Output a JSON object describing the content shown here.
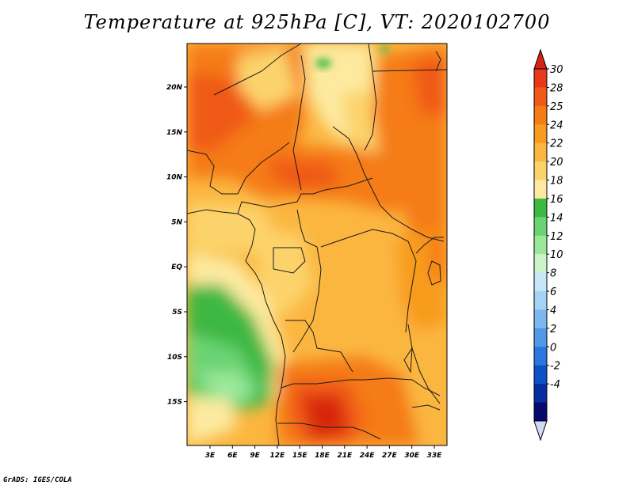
{
  "title": "Temperature at 925hPa [C], VT: 2020102700",
  "credit": "GrADS: IGES/COLA",
  "map": {
    "lon_ticks": [
      "3E",
      "6E",
      "9E",
      "12E",
      "15E",
      "18E",
      "21E",
      "24E",
      "27E",
      "30E",
      "33E"
    ],
    "lat_ticks": [
      "20N",
      "15N",
      "10N",
      "5N",
      "EQ",
      "5S",
      "10S",
      "15S"
    ]
  },
  "colorbar": {
    "labels": [
      "30",
      "28",
      "25",
      "24",
      "22",
      "20",
      "18",
      "16",
      "14",
      "12",
      "10",
      "8",
      "6",
      "4",
      "2",
      "0",
      "-2",
      "-4"
    ],
    "colors": [
      "#e8391f",
      "#f05a18",
      "#f57b14",
      "#f89b1f",
      "#fbb640",
      "#fcd36b",
      "#fdeaa0",
      "#3cb843",
      "#6bd373",
      "#9be89b",
      "#cdf4c8",
      "#c8e6fa",
      "#a5d2f5",
      "#7cb8ef",
      "#4f99e6",
      "#2a78dd",
      "#0b52c7",
      "#072ea0",
      "#050a6e"
    ],
    "top_arrow_color": "#d62414",
    "bottom_arrow_color": "#d4d8f7"
  }
}
